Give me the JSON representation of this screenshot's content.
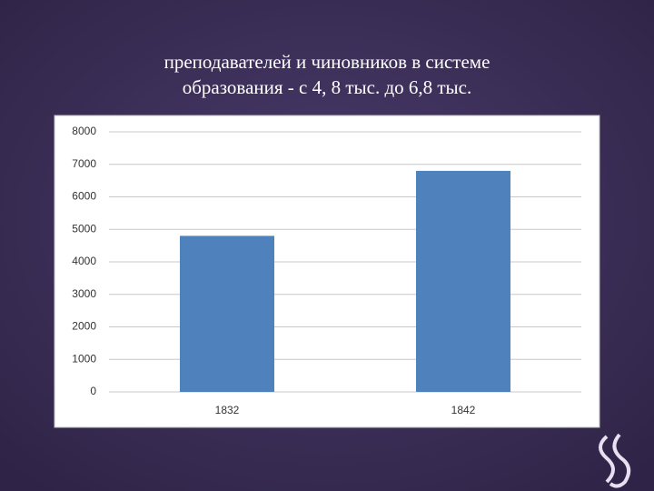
{
  "chart_data": {
    "type": "bar",
    "title": [
      "преподавателей и чиновников в системе",
      "образования - с 4, 8 тыс. до 6,8 тыс."
    ],
    "categories": [
      "1832",
      "1842"
    ],
    "values": [
      4800,
      6800
    ],
    "color": "#4f81bd",
    "ylim": [
      0,
      8000
    ],
    "yticks": [
      0,
      1000,
      2000,
      3000,
      4000,
      5000,
      6000,
      7000,
      8000
    ],
    "grid": true
  }
}
